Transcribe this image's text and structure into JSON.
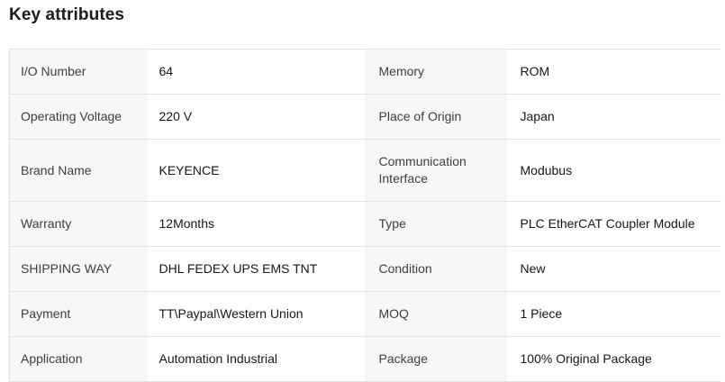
{
  "page": {
    "title": "Key attributes"
  },
  "theme": {
    "label_cell_bg": "#f7f7f8",
    "border_color": "#e3e3e3",
    "title_color": "#1b1b1b",
    "label_text_color": "#3d3d3d",
    "value_text_color": "#161616"
  },
  "attributes": {
    "left": [
      {
        "label": "I/O Number",
        "value": "64"
      },
      {
        "label": "Operating Voltage",
        "value": "220 V"
      },
      {
        "label": "Brand Name",
        "value": "KEYENCE"
      },
      {
        "label": "Warranty",
        "value": "12Months"
      },
      {
        "label": "SHIPPING WAY",
        "value": "DHL FEDEX UPS EMS TNT"
      },
      {
        "label": "Payment",
        "value": "TT\\Paypal\\Western Union"
      },
      {
        "label": "Application",
        "value": "Automation Industrial"
      }
    ],
    "right": [
      {
        "label": "Memory",
        "value": "ROM"
      },
      {
        "label": "Place of Origin",
        "value": "Japan"
      },
      {
        "label": "Communication Interface",
        "value": "Modubus"
      },
      {
        "label": "Type",
        "value": "PLC EtherCAT Coupler Module"
      },
      {
        "label": "Condition",
        "value": "New"
      },
      {
        "label": "MOQ",
        "value": "1 Piece"
      },
      {
        "label": "Package",
        "value": "100% Original Package"
      }
    ]
  }
}
